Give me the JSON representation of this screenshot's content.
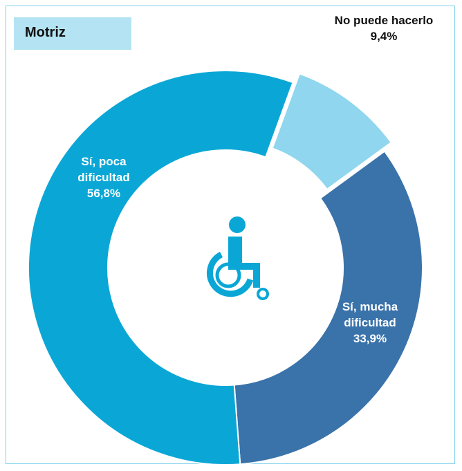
{
  "chart_data": {
    "type": "donut",
    "title": "Motriz",
    "categories": [
      "No puede hacerlo",
      "Sí, mucha dificultad",
      "Sí, poca dificultad"
    ],
    "values": [
      9.4,
      33.9,
      56.8
    ],
    "value_labels": [
      "9,4%",
      "33,9%",
      "56,8%"
    ],
    "colors": [
      "#8fd6ee",
      "#3a72aa",
      "#0aa7d6"
    ]
  }
}
